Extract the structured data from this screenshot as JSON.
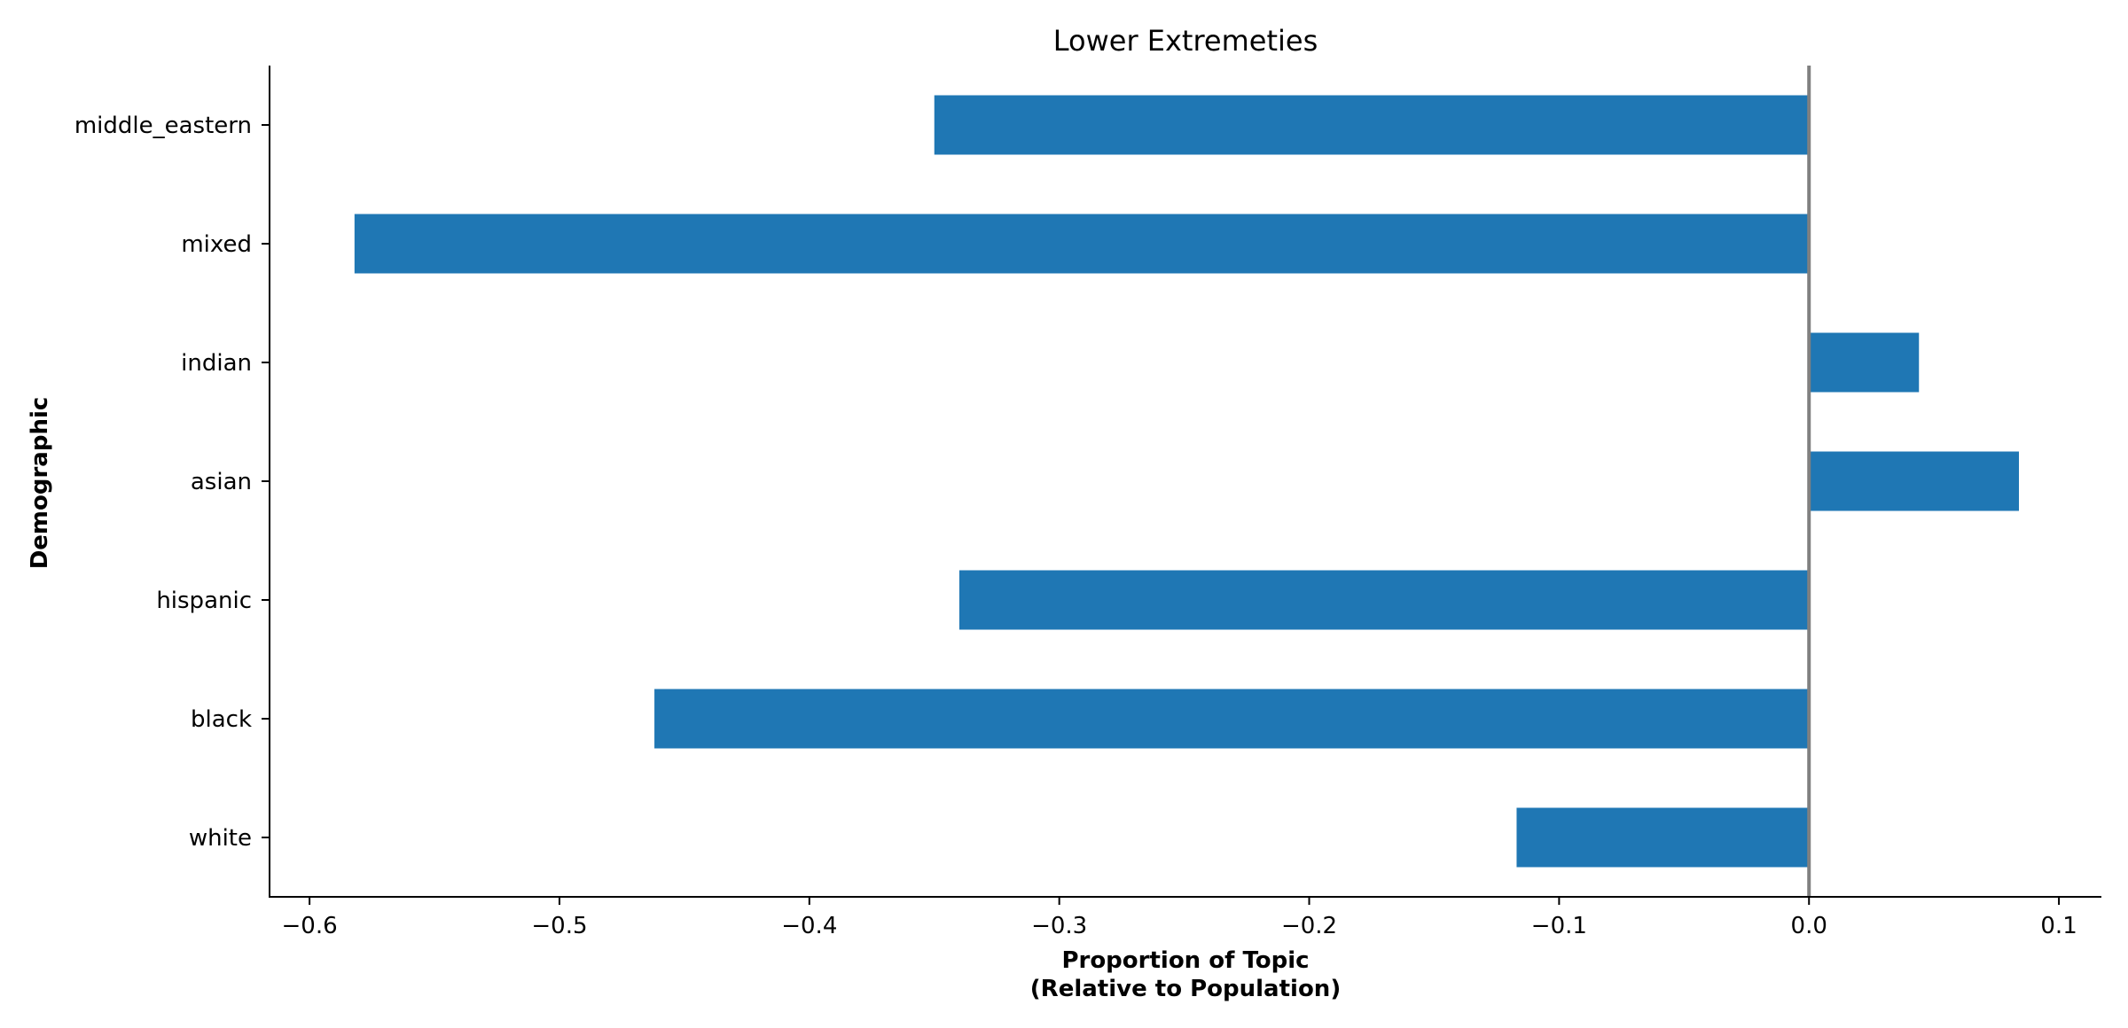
{
  "chart_data": {
    "type": "bar",
    "orientation": "horizontal",
    "title": "Lower Extremeties",
    "xlabel_line1": "Proportion of Topic",
    "xlabel_line2": "(Relative to Population)",
    "ylabel": "Demographic",
    "categories": [
      "middle_eastern",
      "mixed",
      "indian",
      "asian",
      "hispanic",
      "black",
      "white"
    ],
    "values": [
      -0.35,
      -0.582,
      0.044,
      0.084,
      -0.34,
      -0.462,
      -0.117
    ],
    "xlim": [
      -0.616,
      0.117
    ],
    "xticks": [
      -0.6,
      -0.5,
      -0.4,
      -0.3,
      -0.2,
      -0.1,
      0.0,
      0.1
    ],
    "xtick_labels": [
      "−0.6",
      "−0.5",
      "−0.4",
      "−0.3",
      "−0.2",
      "−0.1",
      "0.0",
      "0.1"
    ],
    "reference_line_x": 0.0,
    "bar_color": "#1f77b4",
    "reference_line_color": "#808080",
    "grid": false,
    "legend": "none"
  }
}
